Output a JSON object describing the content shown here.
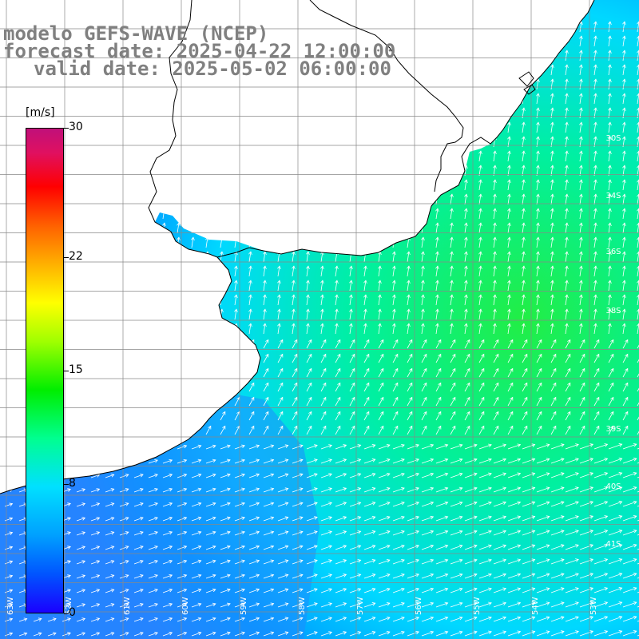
{
  "title": {
    "line1": "modelo GEFS-WAVE (NCEP)",
    "line2": "forecast date: 2025-04-22 12:00:00",
    "line3": "valid date: 2025-05-02 06:00:00"
  },
  "colorbar": {
    "unit": "[m/s]",
    "min": 0,
    "max": 30,
    "ticks": [
      "30",
      "22",
      "15",
      "8",
      "0"
    ],
    "tick_values": [
      30,
      22,
      15,
      8,
      0
    ]
  },
  "grid": {
    "lat_labels": [
      "30S",
      "34S",
      "36S",
      "38S",
      "39S",
      "40S",
      "41S"
    ],
    "lon_labels": [
      "63W",
      "62W",
      "61W",
      "60W",
      "59W",
      "58W",
      "57W",
      "56W",
      "55W",
      "54W",
      "53W"
    ]
  },
  "colors": {
    "land": "#ffffff",
    "coast": "#000000",
    "grid": "#888888",
    "arrow": "#ffffff",
    "title": "#808080"
  },
  "icons": {
    "wind_arrow": "arrow-icon"
  }
}
